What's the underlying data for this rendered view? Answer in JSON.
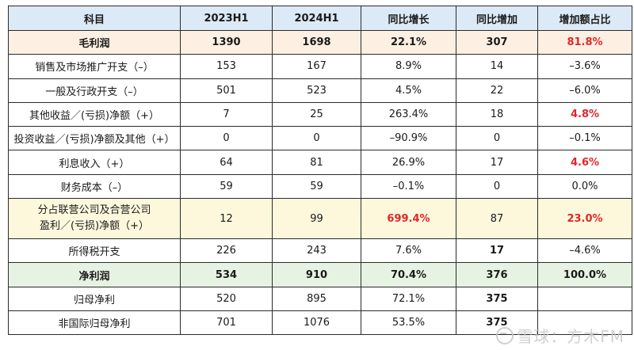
{
  "headers": [
    "科目",
    "2023H1",
    "2024H1",
    "同比增长",
    "同比增加",
    "增加额占比"
  ],
  "rows": [
    {
      "name": "毛利润",
      "h1_2023": "1390",
      "h1_2024": "1698",
      "yoy_growth": "22.1%",
      "yoy_increase": "307",
      "share": "81.8%"
    },
    {
      "name": "销售及市场推广开支（–）",
      "h1_2023": "153",
      "h1_2024": "167",
      "yoy_growth": "8.9%",
      "yoy_increase": "14",
      "share": "–3.6%"
    },
    {
      "name": "一般及行政开支（–）",
      "h1_2023": "501",
      "h1_2024": "523",
      "yoy_growth": "4.5%",
      "yoy_increase": "22",
      "share": "–6.0%"
    },
    {
      "name": "其他收益／(亏损)净额（+）",
      "h1_2023": "7",
      "h1_2024": "25",
      "yoy_growth": "263.4%",
      "yoy_increase": "18",
      "share": "4.8%"
    },
    {
      "name": "投资收益／(亏损)净额及其他（+）",
      "h1_2023": "0",
      "h1_2024": "0",
      "yoy_growth": "–90.9%",
      "yoy_increase": "0",
      "share": "–0.1%"
    },
    {
      "name": "利息收入（+）",
      "h1_2023": "64",
      "h1_2024": "81",
      "yoy_growth": "26.9%",
      "yoy_increase": "17",
      "share": "4.6%"
    },
    {
      "name": "财务成本（–）",
      "h1_2023": "59",
      "h1_2024": "59",
      "yoy_growth": "–0.1%",
      "yoy_increase": "0",
      "share": "0.0%"
    },
    {
      "name_line1": "分占联营公司及合营公司",
      "name_line2": "盈利／(亏损)净额（+）",
      "h1_2023": "12",
      "h1_2024": "99",
      "yoy_growth": "699.4%",
      "yoy_increase": "87",
      "share": "23.0%"
    },
    {
      "name": "所得税开支",
      "h1_2023": "226",
      "h1_2024": "243",
      "yoy_growth": "7.6%",
      "yoy_increase": "17",
      "share": "–4.6%"
    },
    {
      "name": "净利润",
      "h1_2023": "534",
      "h1_2024": "910",
      "yoy_growth": "70.4%",
      "yoy_increase": "376",
      "share": "100.0%"
    },
    {
      "name": "归母净利",
      "h1_2023": "520",
      "h1_2024": "895",
      "yoy_growth": "72.1%",
      "yoy_increase": "375",
      "share": ""
    },
    {
      "name": "非国际归母净利",
      "h1_2023": "701",
      "h1_2024": "1076",
      "yoy_growth": "53.5%",
      "yoy_increase": "375",
      "share": ""
    }
  ],
  "watermark": "雪球：方木FM",
  "colors": {
    "header_bg": "#dce9f7",
    "gross_bg": "#fdf0e2",
    "jv_bg": "#fdf8dc",
    "net_bg": "#e7f3e2",
    "highlight_red": "#e0262b"
  }
}
